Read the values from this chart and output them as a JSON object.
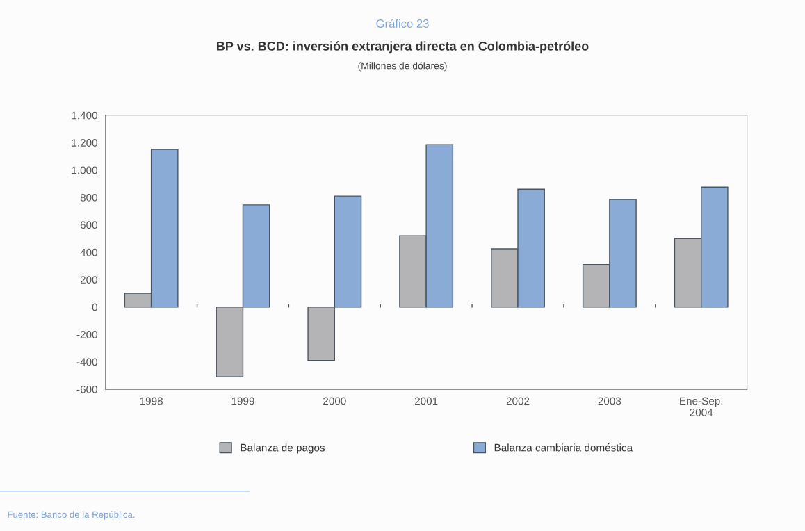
{
  "chart_data": {
    "type": "bar",
    "title": "BP vs. BCD: inversión extranjera directa en Colombia-petróleo",
    "subtitle": "(Millones de dólares)",
    "annotations": [
      "Gráfico 23",
      "Fuente: Banco de la República."
    ],
    "categories": [
      "1998",
      "1999",
      "2000",
      "2001",
      "2002",
      "2003",
      "Ene-Sep.\n2004"
    ],
    "series": [
      {
        "name": "Balanza de pagos",
        "color": "#b4b4b6",
        "values": [
          100,
          -510,
          -390,
          520,
          425,
          310,
          500
        ]
      },
      {
        "name": "Balanza cambiaria doméstica",
        "color": "#8aabd6",
        "values": [
          1150,
          745,
          810,
          1185,
          860,
          785,
          875
        ]
      }
    ],
    "ylim": [
      -600,
      1400
    ],
    "yticks": [
      {
        "value": -600,
        "label": "-600"
      },
      {
        "value": -400,
        "label": "-400"
      },
      {
        "value": -200,
        "label": "-200"
      },
      0,
      200,
      400,
      600,
      800,
      {
        "value": 1000,
        "label": "1.000"
      },
      {
        "value": 1200,
        "label": "1.200"
      },
      {
        "value": 1400,
        "label": "1.400"
      }
    ],
    "legend": "bottom"
  }
}
